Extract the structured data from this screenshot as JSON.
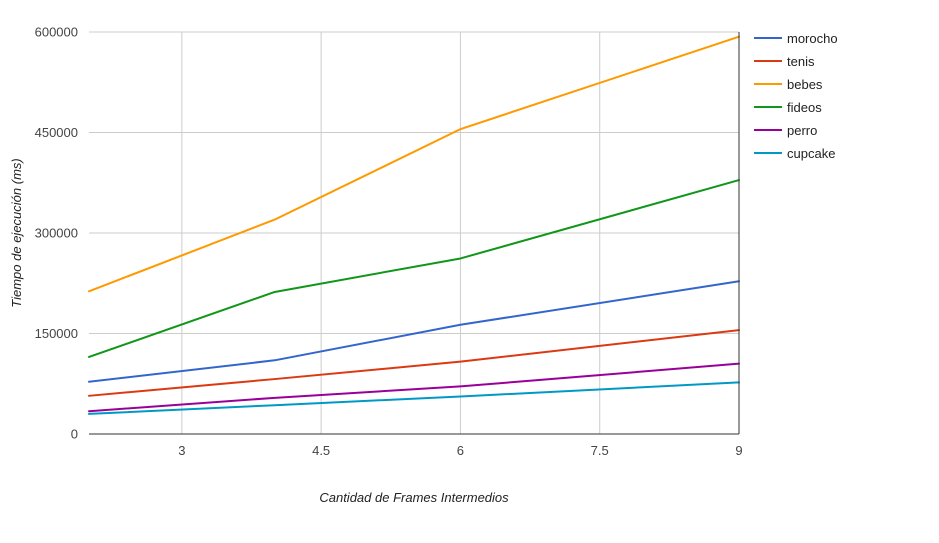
{
  "chart_data": {
    "type": "line",
    "title": "",
    "xlabel": "Cantidad de Frames Intermedios",
    "ylabel": "Tiempo de ejecución (ms)",
    "xlim": [
      2,
      9
    ],
    "ylim": [
      0,
      600000
    ],
    "x_ticks": [
      {
        "value": 3,
        "label": "3"
      },
      {
        "value": 4.5,
        "label": "4.5"
      },
      {
        "value": 6,
        "label": "6"
      },
      {
        "value": 7.5,
        "label": "7.5"
      },
      {
        "value": 9,
        "label": "9"
      }
    ],
    "y_ticks": [
      {
        "value": 0,
        "label": "0"
      },
      {
        "value": 150000,
        "label": "150000"
      },
      {
        "value": 300000,
        "label": "300000"
      },
      {
        "value": 450000,
        "label": "450000"
      },
      {
        "value": 600000,
        "label": "600000"
      }
    ],
    "grid": true,
    "legend_position": "right",
    "x": [
      2,
      4,
      6,
      9
    ],
    "series": [
      {
        "name": "morocho",
        "color": "#3366cc",
        "values": [
          78000,
          110000,
          163000,
          228000
        ]
      },
      {
        "name": "tenis",
        "color": "#dc3912",
        "values": [
          57000,
          82000,
          108000,
          155000
        ]
      },
      {
        "name": "bebes",
        "color": "#ff9900",
        "values": [
          213000,
          320000,
          455000,
          593000
        ]
      },
      {
        "name": "fideos",
        "color": "#109618",
        "values": [
          115000,
          212000,
          262000,
          379000
        ]
      },
      {
        "name": "perro",
        "color": "#990099",
        "values": [
          34000,
          54000,
          71000,
          105000
        ]
      },
      {
        "name": "cupcake",
        "color": "#0099c6",
        "values": [
          30000,
          43000,
          56000,
          77000
        ]
      }
    ]
  }
}
